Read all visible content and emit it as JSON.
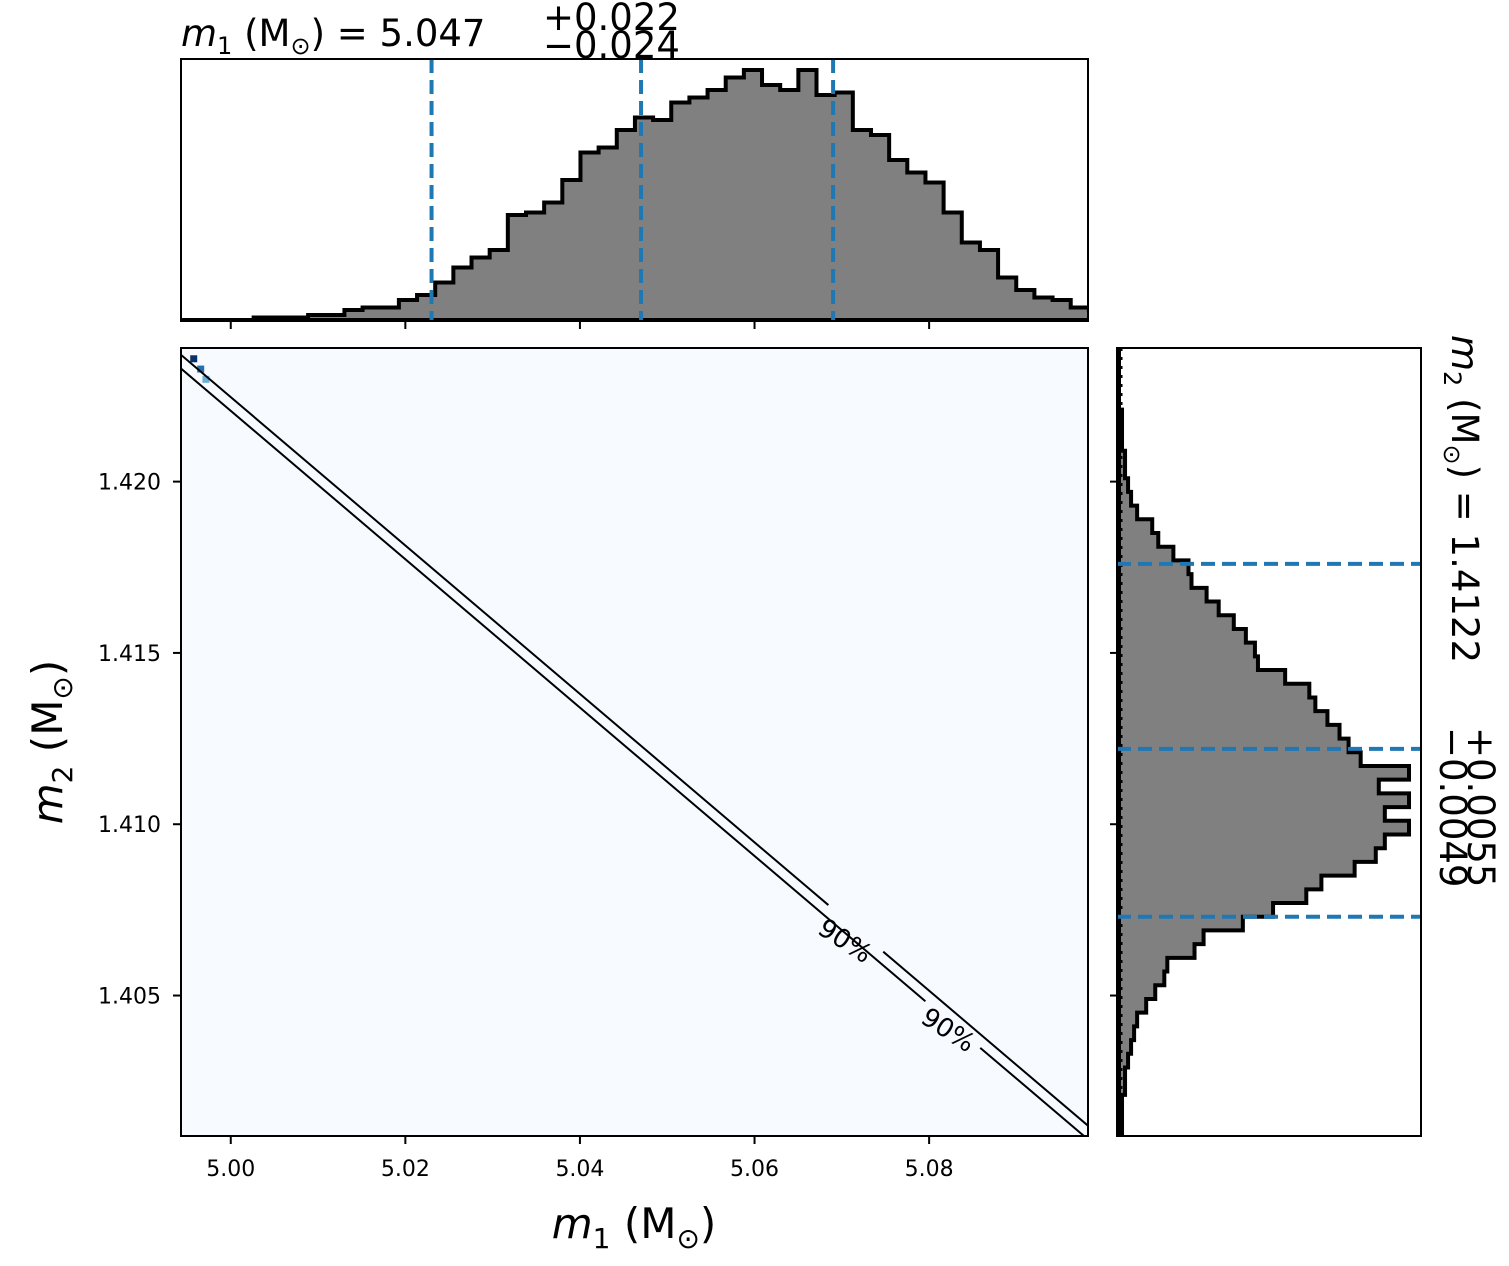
{
  "chart_data": [
    {
      "type": "area",
      "panel": "m1-marginal",
      "title": {
        "symbol": "m",
        "subscript": "1",
        "unit": "(M",
        "unit_sub": "⊙",
        "unit_close": ")",
        "eq": " = 5.047",
        "upper": "+0.022",
        "lower": "−0.024"
      },
      "xlim": [
        4.9943,
        5.0982
      ],
      "x_ticks": [
        5.0,
        5.02,
        5.04,
        5.06,
        5.08
      ],
      "bin_edges_start": 4.9943,
      "bin_width": 0.00208,
      "counts": [
        0,
        0,
        0,
        0,
        0.01,
        0.01,
        0.01,
        0.02,
        0.02,
        0.04,
        0.05,
        0.05,
        0.08,
        0.1,
        0.15,
        0.21,
        0.25,
        0.28,
        0.42,
        0.43,
        0.47,
        0.56,
        0.67,
        0.69,
        0.76,
        0.81,
        0.8,
        0.87,
        0.89,
        0.92,
        0.97,
        1.0,
        0.94,
        0.92,
        1.0,
        0.9,
        0.91,
        0.76,
        0.74,
        0.64,
        0.59,
        0.55,
        0.43,
        0.31,
        0.28,
        0.17,
        0.12,
        0.09,
        0.08,
        0.05,
        0.04,
        0.02,
        0.02,
        0.01,
        0.01,
        0.0,
        0.0,
        0.0,
        0.0,
        0.0
      ],
      "quantiles": [
        5.023,
        5.047,
        5.069
      ],
      "prior_level": 0.01,
      "fill_color": "#808080",
      "line_color": "#000000",
      "quantile_color": "#1f77b4"
    },
    {
      "type": "heatmap",
      "panel": "joint",
      "xlabel": {
        "symbol": "m",
        "subscript": "1",
        "unit": "(M",
        "unit_sub": "⊙",
        "unit_close": ")"
      },
      "ylabel": {
        "symbol": "m",
        "subscript": "2",
        "unit": "(M",
        "unit_sub": "⊙",
        "unit_close": ")"
      },
      "xlim": [
        4.9943,
        5.0982
      ],
      "ylim": [
        1.4009,
        1.4239
      ],
      "x_ticks": [
        5.0,
        5.02,
        5.04,
        5.06,
        5.08
      ],
      "x_tick_labels": [
        "5.00",
        "5.02",
        "5.04",
        "5.06",
        "5.08"
      ],
      "y_ticks": [
        1.405,
        1.41,
        1.415,
        1.42
      ],
      "y_tick_labels": [
        "1.405",
        "1.410",
        "1.415",
        "1.420"
      ],
      "background_color": "#f7fbff",
      "contours": [
        {
          "start": [
            4.9943,
            1.4237
          ],
          "end": [
            5.0982,
            1.4012
          ]
        },
        {
          "start": [
            4.9943,
            1.4233
          ],
          "end": [
            5.0982,
            1.4008
          ]
        }
      ],
      "contour_labels": [
        {
          "text": "90%",
          "x": 5.0704,
          "y": 1.4066,
          "angle": 33
        },
        {
          "text": "90%",
          "x": 5.0822,
          "y": 1.404,
          "angle": 33
        }
      ],
      "hot_pixels": [
        {
          "x": 4.9957,
          "y": 1.4236,
          "color": "#08306b"
        },
        {
          "x": 4.9965,
          "y": 1.4233,
          "color": "#2171b5"
        },
        {
          "x": 4.9971,
          "y": 1.423,
          "color": "#6baed6"
        }
      ]
    },
    {
      "type": "area",
      "panel": "m2-marginal",
      "orientation": "horizontal",
      "title": {
        "symbol": "m",
        "subscript": "2",
        "unit": "(M",
        "unit_sub": "⊙",
        "unit_close": ")",
        "eq": " = 1.4122",
        "upper": "+0.0055",
        "lower": "−0.0049"
      },
      "ylim": [
        1.4009,
        1.4239
      ],
      "y_ticks": [
        1.405,
        1.41,
        1.415,
        1.42
      ],
      "bin_edges_start": 1.4009,
      "bin_width": 0.0004,
      "counts": [
        0.01,
        0.01,
        0.01,
        0.02,
        0.02,
        0.03,
        0.04,
        0.05,
        0.06,
        0.09,
        0.12,
        0.15,
        0.16,
        0.25,
        0.28,
        0.41,
        0.51,
        0.62,
        0.67,
        0.78,
        0.85,
        0.88,
        0.96,
        0.88,
        0.96,
        0.86,
        0.96,
        0.8,
        0.76,
        0.73,
        0.69,
        0.65,
        0.63,
        0.55,
        0.46,
        0.45,
        0.42,
        0.38,
        0.33,
        0.29,
        0.24,
        0.23,
        0.18,
        0.13,
        0.11,
        0.06,
        0.04,
        0.03,
        0.02,
        0.02,
        0.01,
        0.01,
        0.01,
        0.0,
        0.0,
        0.0,
        0.0,
        0.0
      ],
      "quantiles": [
        1.4073,
        1.4122,
        1.4176
      ],
      "prior_level": 0.01,
      "fill_color": "#808080",
      "line_color": "#000000",
      "quantile_color": "#1f77b4"
    }
  ]
}
